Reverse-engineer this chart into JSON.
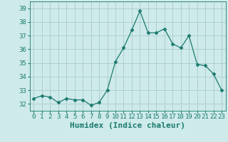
{
  "x": [
    0,
    1,
    2,
    3,
    4,
    5,
    6,
    7,
    8,
    9,
    10,
    11,
    12,
    13,
    14,
    15,
    16,
    17,
    18,
    19,
    20,
    21,
    22,
    23
  ],
  "y": [
    32.4,
    32.6,
    32.5,
    32.1,
    32.4,
    32.3,
    32.3,
    31.9,
    32.1,
    33.0,
    35.1,
    36.1,
    37.4,
    38.8,
    37.2,
    37.2,
    37.5,
    36.4,
    36.1,
    37.0,
    34.9,
    34.8,
    34.2,
    33.0
  ],
  "line_color": "#1a7a6e",
  "marker": "D",
  "marker_size": 2.5,
  "bg_color": "#ceeaea",
  "grid_color": "#afd0d0",
  "xlabel": "Humidex (Indice chaleur)",
  "ylim": [
    31.5,
    39.5
  ],
  "yticks": [
    32,
    33,
    34,
    35,
    36,
    37,
    38,
    39
  ],
  "xticks": [
    0,
    1,
    2,
    3,
    4,
    5,
    6,
    7,
    8,
    9,
    10,
    11,
    12,
    13,
    14,
    15,
    16,
    17,
    18,
    19,
    20,
    21,
    22,
    23
  ],
  "xtick_labels": [
    "0",
    "1",
    "2",
    "3",
    "4",
    "5",
    "6",
    "7",
    "8",
    "9",
    "10",
    "11",
    "12",
    "13",
    "14",
    "15",
    "16",
    "17",
    "18",
    "19",
    "20",
    "21",
    "22",
    "23"
  ],
  "tick_color": "#1a7a6e",
  "label_color": "#1a7a6e",
  "font_size_label": 8,
  "font_size_tick": 6.5
}
